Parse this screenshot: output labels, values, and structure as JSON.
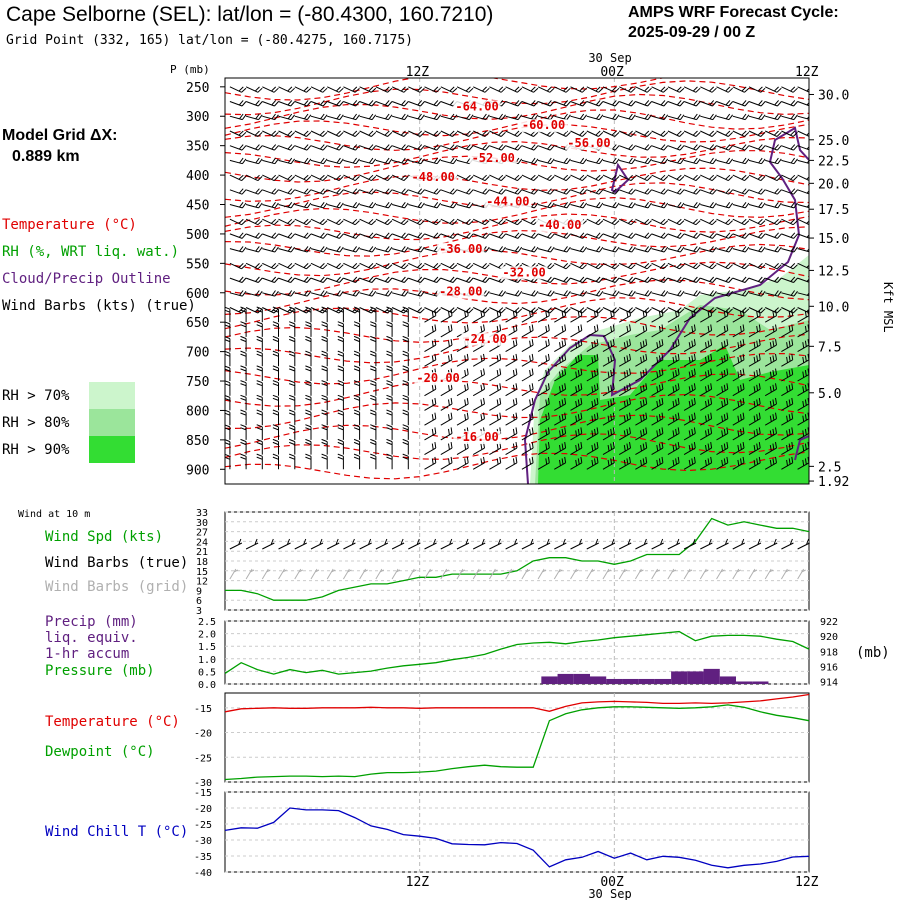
{
  "header": {
    "title": "Cape Selborne (SEL):  lat/lon = (-80.4300, 160.7210)",
    "grid_point": "Grid Point (332, 165) lat/lon = (-80.4275, 160.7175)",
    "cycle_label": "AMPS WRF Forecast Cycle:",
    "cycle_value": "2025-09-29 / 00  Z",
    "model_grid_label": "Model Grid ΔX:",
    "model_grid_value": "0.889 km"
  },
  "colors": {
    "temperature": "#e00000",
    "rh": "#00a000",
    "cloud": "#602080",
    "wind": "#000000",
    "wind_grid": "#b0b0b0",
    "windchill": "#0000c0",
    "rh70": "#ccf5cc",
    "rh80": "#9be59b",
    "rh90": "#33dd33"
  },
  "legend": {
    "temperature": "Temperature (°C)",
    "rh": "RH (%, WRT liq. wat.)",
    "cloud": "Cloud/Precip Outline",
    "wind": "Wind Barbs (kts) (true)",
    "rh70": "RH > 70%",
    "rh80": "RH > 80%",
    "rh90": "RH > 90%"
  },
  "panel_labels": {
    "wind10": "Wind at 10 m",
    "wind_spd": "Wind Spd (kts)",
    "wind_barbs_true": "Wind Barbs (true)",
    "wind_barbs_grid": "Wind Barbs (grid)",
    "precip": "Precip (mm)",
    "precip2": "liq. equiv.",
    "precip3": "1-hr accum",
    "pressure": "Pressure (mb)",
    "pressure_unit": "(mb)",
    "temperature": "Temperature (°C)",
    "dewpoint": "Dewpoint (°C)",
    "windchill": "Wind Chill T (°C)"
  },
  "chart_data": [
    {
      "type": "cross-section",
      "name": "time-height",
      "ylabel": "P (mb)",
      "yticks": [
        "250",
        "300",
        "350",
        "400",
        "450",
        "500",
        "550",
        "600",
        "650",
        "700",
        "750",
        "800",
        "850",
        "900"
      ],
      "ylim": [
        925,
        235
      ],
      "right_axis_label": "Kft MSL",
      "right_ticks": [
        {
          "p": 263,
          "label": "30.0"
        },
        {
          "p": 340,
          "label": "25.0"
        },
        {
          "p": 375,
          "label": "22.5"
        },
        {
          "p": 414,
          "label": "20.0"
        },
        {
          "p": 458,
          "label": "17.5"
        },
        {
          "p": 507,
          "label": "15.0"
        },
        {
          "p": 562,
          "label": "12.5"
        },
        {
          "p": 623,
          "label": "10.0"
        },
        {
          "p": 691,
          "label": "7.5"
        },
        {
          "p": 770,
          "label": "5.0"
        },
        {
          "p": 895,
          "label": "2.5"
        },
        {
          "p": 920,
          "label": "1.92"
        }
      ],
      "time_ticks": [
        {
          "t": 12,
          "label": "12Z"
        },
        {
          "t": 24,
          "label": "00Z"
        },
        {
          "t": 36,
          "label": "12Z"
        }
      ],
      "date_label": "30 Sep",
      "xlim": [
        0,
        36
      ],
      "temperature_contours": [
        {
          "label": "-64.00",
          "t": 14.2,
          "p": 290
        },
        {
          "label": "-60.00",
          "t": 18.3,
          "p": 322
        },
        {
          "label": "-56.00",
          "t": 21.1,
          "p": 352
        },
        {
          "label": "-52.00",
          "t": 15.2,
          "p": 378
        },
        {
          "label": "-48.00",
          "t": 11.5,
          "p": 410
        },
        {
          "label": "-44.00",
          "t": 16.1,
          "p": 452
        },
        {
          "label": "-40.00",
          "t": 19.3,
          "p": 492
        },
        {
          "label": "-36.00",
          "t": 13.2,
          "p": 532
        },
        {
          "label": "-32.00",
          "t": 17.1,
          "p": 572
        },
        {
          "label": "-28.00",
          "t": 13.2,
          "p": 605
        },
        {
          "label": "-24.00",
          "t": 14.7,
          "p": 685
        },
        {
          "label": "-20.00",
          "t": 11.8,
          "p": 752
        },
        {
          "label": "-16.00",
          "t": 14.2,
          "p": 852
        }
      ]
    },
    {
      "type": "line",
      "name": "wind-speed",
      "ylabel": "Wind Spd (kts)",
      "yticks": [
        "33",
        "30",
        "27",
        "24",
        "21",
        "18",
        "15",
        "12",
        "9",
        "6",
        "3"
      ],
      "ylim": [
        3,
        33
      ],
      "x": [
        0,
        1,
        2,
        3,
        4,
        5,
        6,
        7,
        8,
        9,
        10,
        11,
        12,
        13,
        14,
        15,
        16,
        17,
        18,
        19,
        20,
        21,
        22,
        23,
        24,
        25,
        26,
        27,
        28,
        29,
        30,
        31,
        32,
        33,
        34,
        35,
        36
      ],
      "values": [
        9,
        9,
        8,
        6,
        6,
        6,
        7,
        9,
        10,
        11,
        11,
        12,
        13,
        13,
        14,
        14,
        14,
        14,
        15,
        18,
        19,
        19,
        18,
        18,
        17,
        18,
        20,
        20,
        20,
        24,
        31,
        29,
        30,
        29,
        28,
        28,
        27
      ]
    },
    {
      "type": "bar+line",
      "name": "precip-pressure",
      "yticks_left": [
        "2.5",
        "2.0",
        "1.5",
        "1.0",
        "0.5",
        "0.0"
      ],
      "ylim_left": [
        0,
        2.5
      ],
      "yticks_right": [
        "922",
        "920",
        "918",
        "916",
        "914"
      ],
      "ylim_right": [
        913.7,
        922
      ],
      "x": [
        0,
        1,
        2,
        3,
        4,
        5,
        6,
        7,
        8,
        9,
        10,
        11,
        12,
        13,
        14,
        15,
        16,
        17,
        18,
        19,
        20,
        21,
        22,
        23,
        24,
        25,
        26,
        27,
        28,
        29,
        30,
        31,
        32,
        33,
        34,
        35,
        36
      ],
      "precip": [
        0,
        0,
        0,
        0,
        0,
        0,
        0,
        0,
        0,
        0,
        0,
        0,
        0,
        0,
        0,
        0,
        0,
        0,
        0,
        0,
        0.3,
        0.4,
        0.4,
        0.3,
        0.2,
        0.2,
        0.2,
        0.2,
        0.5,
        0.5,
        0.6,
        0.3,
        0.1,
        0.1,
        0,
        0,
        0
      ],
      "pressure": [
        915.1,
        916.5,
        915.6,
        915.0,
        915.6,
        915.2,
        915.5,
        915.0,
        915.2,
        915.4,
        915.8,
        916.1,
        916.3,
        916.5,
        916.9,
        917.2,
        917.6,
        918.3,
        918.9,
        919.1,
        919.2,
        919.0,
        919.3,
        919.5,
        919.8,
        920.0,
        920.2,
        920.4,
        920.6,
        919.4,
        920.0,
        920.1,
        920.1,
        920.0,
        919.6,
        919.3,
        918.3
      ]
    },
    {
      "type": "line",
      "name": "temp-dewpoint",
      "yticks": [
        "-15",
        "-20",
        "-25",
        "-30"
      ],
      "ylim": [
        -30,
        -12
      ],
      "x": [
        0,
        1,
        2,
        3,
        4,
        5,
        6,
        7,
        8,
        9,
        10,
        11,
        12,
        13,
        14,
        15,
        16,
        17,
        18,
        19,
        20,
        21,
        22,
        23,
        24,
        25,
        26,
        27,
        28,
        29,
        30,
        31,
        32,
        33,
        34,
        35,
        36
      ],
      "series": [
        {
          "name": "Temperature",
          "values": [
            -15.8,
            -15.2,
            -15.1,
            -15.0,
            -15.1,
            -15.1,
            -15.0,
            -15.0,
            -15.0,
            -14.9,
            -15.0,
            -15.0,
            -15.1,
            -15.0,
            -15.0,
            -15.0,
            -15.0,
            -15.0,
            -15.0,
            -15.0,
            -15.7,
            -14.7,
            -14.0,
            -13.8,
            -13.7,
            -13.8,
            -13.9,
            -14.1,
            -14.1,
            -14.0,
            -14.1,
            -14.0,
            -13.8,
            -13.6,
            -13.2,
            -12.8,
            -12.3
          ]
        },
        {
          "name": "Dewpoint",
          "values": [
            -29.5,
            -29.3,
            -29.0,
            -28.9,
            -28.8,
            -28.8,
            -28.9,
            -28.8,
            -28.9,
            -28.4,
            -28.1,
            -28.1,
            -28.0,
            -27.8,
            -27.3,
            -26.9,
            -26.6,
            -26.9,
            -27.0,
            -27.0,
            -17.6,
            -16.2,
            -15.4,
            -15.0,
            -14.8,
            -14.8,
            -14.9,
            -15.0,
            -15.1,
            -15.0,
            -14.8,
            -14.4,
            -14.9,
            -15.8,
            -16.5,
            -17.0,
            -17.6
          ]
        }
      ]
    },
    {
      "type": "line",
      "name": "wind-chill",
      "yticks": [
        "-15",
        "-20",
        "-25",
        "-30",
        "-35",
        "-40"
      ],
      "ylim": [
        -40,
        -15
      ],
      "x": [
        0,
        1,
        2,
        3,
        4,
        5,
        6,
        7,
        8,
        9,
        10,
        11,
        12,
        13,
        14,
        15,
        16,
        17,
        18,
        19,
        20,
        21,
        22,
        23,
        24,
        25,
        26,
        27,
        28,
        29,
        30,
        31,
        32,
        33,
        34,
        35,
        36
      ],
      "values": [
        -27,
        -26.2,
        -26.3,
        -24.5,
        -20,
        -20.6,
        -20.6,
        -20.8,
        -23,
        -25.6,
        -26.7,
        -28.3,
        -28.8,
        -29.5,
        -31.2,
        -31.4,
        -31.5,
        -30.8,
        -31.1,
        -33.2,
        -38.4,
        -36.2,
        -35.4,
        -33.6,
        -35.7,
        -34.1,
        -36.2,
        -35.1,
        -35.4,
        -36.3,
        -37.9,
        -38.7,
        -37.9,
        -37.5,
        -36.7,
        -35.3,
        -35.1
      ]
    }
  ]
}
